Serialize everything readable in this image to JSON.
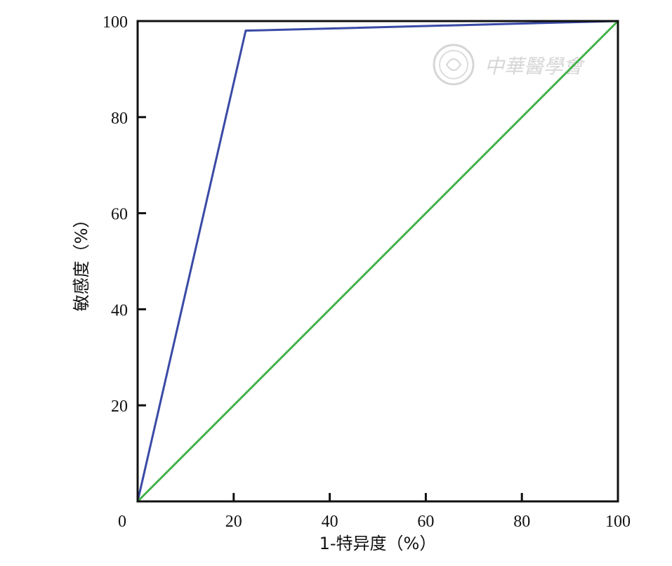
{
  "chart_data": {
    "type": "line",
    "xlabel": "1-特异度（%）",
    "ylabel": "敏感度（%）",
    "xlim": [
      0,
      100
    ],
    "ylim": [
      0,
      100
    ],
    "x_ticks": [
      0,
      20,
      40,
      60,
      80,
      100
    ],
    "y_ticks": [
      20,
      40,
      60,
      80,
      100
    ],
    "x_tick_labels": [
      "0",
      "20",
      "40",
      "60",
      "80",
      "100"
    ],
    "y_tick_labels": [
      "20",
      "40",
      "60",
      "80",
      "100"
    ],
    "grid": false,
    "series": [
      {
        "color": "#3a4aa6",
        "x": [
          0,
          22.5,
          100
        ],
        "y": [
          0,
          98,
          100
        ]
      },
      {
        "color": "#43b049",
        "x": [
          0,
          100
        ],
        "y": [
          0,
          100
        ]
      }
    ]
  },
  "watermark": {
    "text": "中華醫學會",
    "color": "#d0d0d0"
  }
}
